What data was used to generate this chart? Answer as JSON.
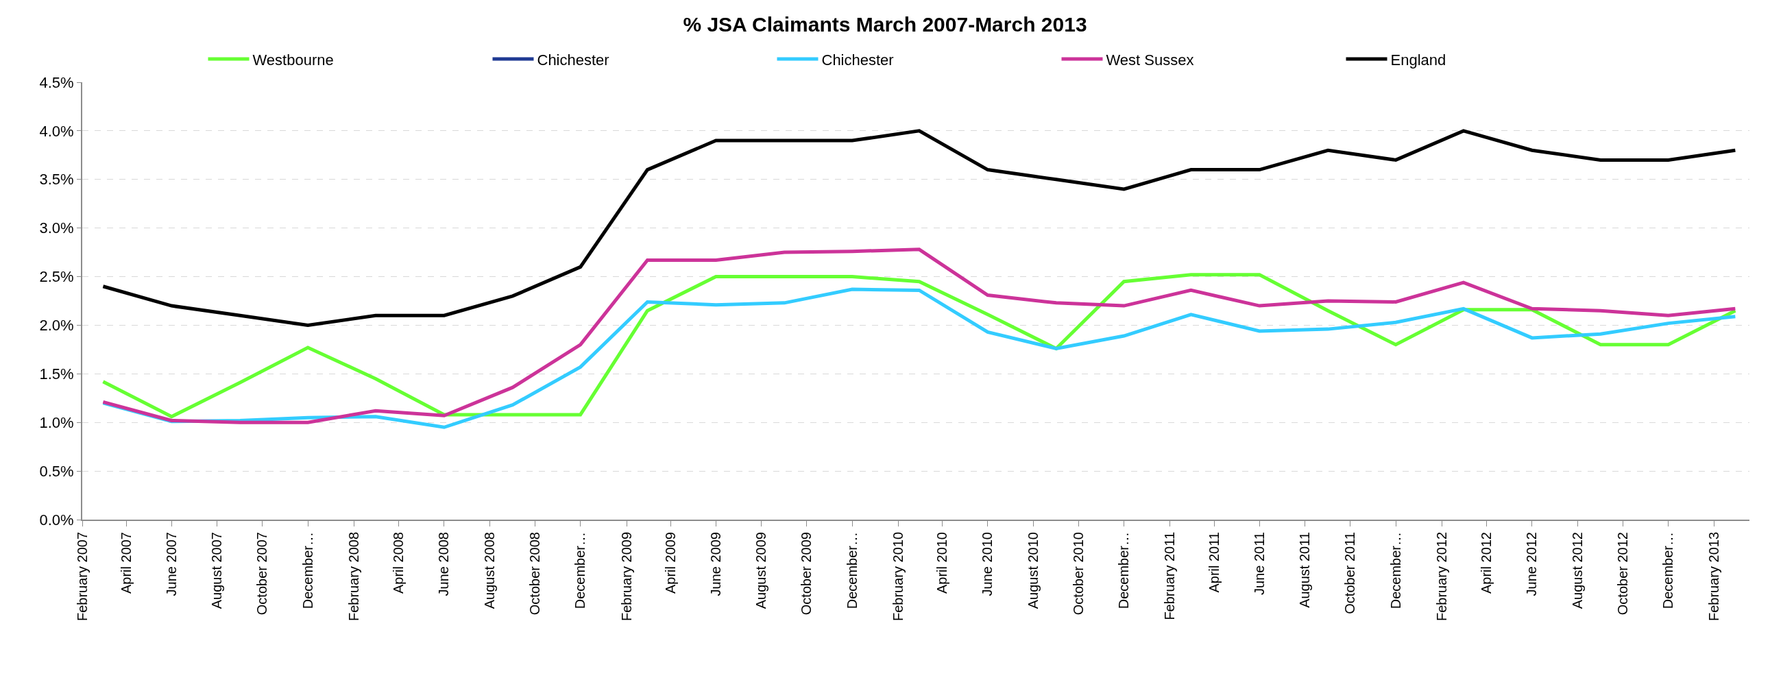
{
  "chart_data": {
    "type": "line",
    "title": "% JSA Claimants March 2007-March 2013",
    "x": [
      "2007-03",
      "2007-06",
      "2007-09",
      "2007-12",
      "2008-03",
      "2008-06",
      "2008-09",
      "2008-12",
      "2009-03",
      "2009-06",
      "2009-09",
      "2009-12",
      "2010-03",
      "2010-06",
      "2010-09",
      "2010-12",
      "2011-03",
      "2011-06",
      "2011-09",
      "2011-12",
      "2012-03",
      "2012-06",
      "2012-09",
      "2012-12",
      "2013-03"
    ],
    "series": [
      {
        "name": "Westbourne",
        "color": "#66ff33",
        "values": [
          1.42,
          1.06,
          1.41,
          1.77,
          1.45,
          1.08,
          1.08,
          1.08,
          2.15,
          2.5,
          2.5,
          2.5,
          2.45,
          2.11,
          1.76,
          2.45,
          2.52,
          2.52,
          2.15,
          1.8,
          2.16,
          2.16,
          1.8,
          1.8,
          2.15
        ]
      },
      {
        "name": "Chichester",
        "color": "#1f3a93",
        "values": [
          null,
          null,
          null,
          null,
          null,
          null,
          null,
          null,
          null,
          null,
          null,
          null,
          null,
          null,
          null,
          null,
          null,
          null,
          null,
          null,
          null,
          null,
          null,
          null,
          null
        ]
      },
      {
        "name": "Chichester",
        "color": "#33ccff",
        "values": [
          1.2,
          1.01,
          1.02,
          1.05,
          1.06,
          0.95,
          1.18,
          1.57,
          2.24,
          2.21,
          2.23,
          2.37,
          2.36,
          1.93,
          1.76,
          1.89,
          2.11,
          1.94,
          1.96,
          2.03,
          2.17,
          1.87,
          1.91,
          2.02,
          2.09
        ]
      },
      {
        "name": "West Sussex",
        "color": "#cc3399",
        "values": [
          1.21,
          1.02,
          1.0,
          1.0,
          1.12,
          1.07,
          1.36,
          1.8,
          2.67,
          2.67,
          2.75,
          2.76,
          2.78,
          2.31,
          2.23,
          2.2,
          2.36,
          2.2,
          2.25,
          2.24,
          2.44,
          2.17,
          2.15,
          2.1,
          2.17
        ]
      },
      {
        "name": "England",
        "color": "#000000",
        "values": [
          2.4,
          2.2,
          2.1,
          2.0,
          2.1,
          2.1,
          2.3,
          2.6,
          3.6,
          3.9,
          3.9,
          3.9,
          4.0,
          3.6,
          3.5,
          3.4,
          3.6,
          3.6,
          3.8,
          3.7,
          4.0,
          3.8,
          3.7,
          3.7,
          3.8
        ]
      }
    ],
    "ylim": [
      0,
      4.5
    ],
    "yticks": [
      {
        "value": 0,
        "label": "0.0%"
      },
      {
        "value": 0.5,
        "label": "0.5%"
      },
      {
        "value": 1,
        "label": "1.0%"
      },
      {
        "value": 1.5,
        "label": "1.5%"
      },
      {
        "value": 2,
        "label": "2.0%"
      },
      {
        "value": 2.5,
        "label": "2.5%"
      },
      {
        "value": 3,
        "label": "3.0%"
      },
      {
        "value": 3.5,
        "label": "3.5%"
      },
      {
        "value": 4,
        "label": "4.0%"
      },
      {
        "value": 4.5,
        "label": "4.5%"
      }
    ],
    "xlim": [
      "2007-02",
      "2013-03-20"
    ],
    "xticks": [
      {
        "value": "2007-02",
        "label": "February 2007"
      },
      {
        "value": "2007-04",
        "label": "April 2007"
      },
      {
        "value": "2007-06",
        "label": "June 2007"
      },
      {
        "value": "2007-08",
        "label": "August 2007"
      },
      {
        "value": "2007-10",
        "label": "October 2007"
      },
      {
        "value": "2007-12",
        "label": "December…"
      },
      {
        "value": "2008-02",
        "label": "February 2008"
      },
      {
        "value": "2008-04",
        "label": "April 2008"
      },
      {
        "value": "2008-06",
        "label": "June 2008"
      },
      {
        "value": "2008-08",
        "label": "August 2008"
      },
      {
        "value": "2008-10",
        "label": "October 2008"
      },
      {
        "value": "2008-12",
        "label": "December…"
      },
      {
        "value": "2009-02",
        "label": "February 2009"
      },
      {
        "value": "2009-04",
        "label": "April 2009"
      },
      {
        "value": "2009-06",
        "label": "June 2009"
      },
      {
        "value": "2009-08",
        "label": "August 2009"
      },
      {
        "value": "2009-10",
        "label": "October 2009"
      },
      {
        "value": "2009-12",
        "label": "December…"
      },
      {
        "value": "2010-02",
        "label": "February 2010"
      },
      {
        "value": "2010-04",
        "label": "April 2010"
      },
      {
        "value": "2010-06",
        "label": "June 2010"
      },
      {
        "value": "2010-08",
        "label": "August 2010"
      },
      {
        "value": "2010-10",
        "label": "October 2010"
      },
      {
        "value": "2010-12",
        "label": "December…"
      },
      {
        "value": "2011-02",
        "label": "February 2011"
      },
      {
        "value": "2011-04",
        "label": "April 2011"
      },
      {
        "value": "2011-06",
        "label": "June 2011"
      },
      {
        "value": "2011-08",
        "label": "August 2011"
      },
      {
        "value": "2011-10",
        "label": "October 2011"
      },
      {
        "value": "2011-12",
        "label": "December…"
      },
      {
        "value": "2012-02",
        "label": "February 2012"
      },
      {
        "value": "2012-04",
        "label": "April 2012"
      },
      {
        "value": "2012-06",
        "label": "June 2012"
      },
      {
        "value": "2012-08",
        "label": "August 2012"
      },
      {
        "value": "2012-10",
        "label": "October 2012"
      },
      {
        "value": "2012-12",
        "label": "December…"
      },
      {
        "value": "2013-02",
        "label": "February 2013"
      }
    ],
    "grid": "y",
    "legend": "top",
    "marker": "none",
    "line_style": "solid"
  }
}
